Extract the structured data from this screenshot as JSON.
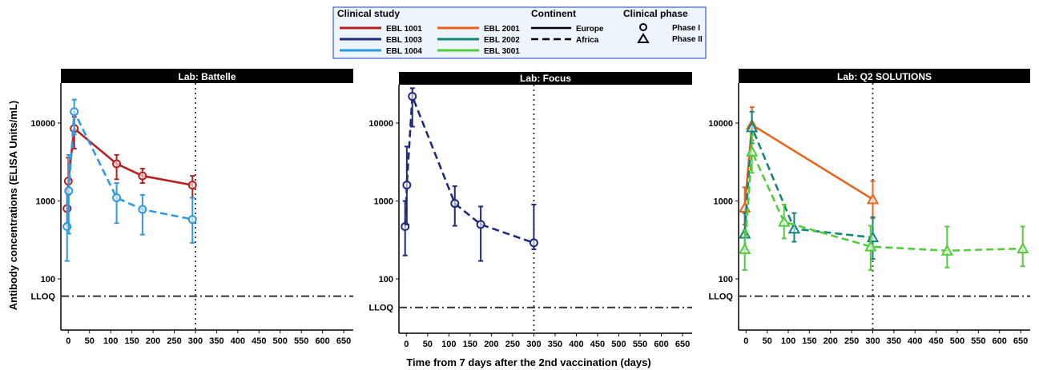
{
  "chart_data": {
    "type": "line",
    "y_axis_label": "Antibody concentrations (ELISA Units/mL)",
    "x_axis_label": "Time from 7 days after the 2nd vaccination (days)",
    "y_scale": "log10",
    "ylim": [
      40,
      30000
    ],
    "y_ticks": [
      100,
      1000,
      10000
    ],
    "y_tick_labels": [
      "100",
      "1000",
      "10000"
    ],
    "lloq_label": "LLOQ",
    "xlim": [
      -10,
      665
    ],
    "x_ticks": [
      0,
      50,
      100,
      150,
      200,
      250,
      300,
      350,
      400,
      450,
      500,
      550,
      600,
      650
    ],
    "x_tick_labels": [
      "0",
      "50",
      "100",
      "150",
      "200",
      "250",
      "300",
      "350",
      "400",
      "450",
      "500",
      "550",
      "600",
      "650"
    ],
    "reference_line_x": 300,
    "legend": {
      "position": "top-center",
      "study_title": "Clinical study",
      "continent_title": "Continent",
      "phase_title": "Clinical phase",
      "studies": [
        {
          "name": "EBL 1001",
          "color": "#B22222"
        },
        {
          "name": "EBL 1003",
          "color": "#1F2A7A"
        },
        {
          "name": "EBL 1004",
          "color": "#2E9BE0"
        },
        {
          "name": "EBL 2001",
          "color": "#E8641B"
        },
        {
          "name": "EBL 2002",
          "color": "#14857A"
        },
        {
          "name": "EBL 3001",
          "color": "#52CC3A"
        }
      ],
      "continents": [
        {
          "name": "Europe",
          "dash": "solid"
        },
        {
          "name": "Africa",
          "dash": "dashed"
        }
      ],
      "phases": [
        {
          "name": "Phase I",
          "shape": "circle"
        },
        {
          "name": "Phase II",
          "shape": "triangle"
        }
      ]
    },
    "panels": [
      {
        "title": "Lab: Battelle",
        "lloq": 60,
        "series": [
          {
            "study": "EBL 1001",
            "continent": "Europe",
            "phase": "Phase I",
            "color": "#B22222",
            "dash": "solid",
            "shape": "circle",
            "points": [
              {
                "x": -3,
                "y": 800,
                "lo": 500,
                "hi": 1400
              },
              {
                "x": 0,
                "y": 1800,
                "lo": 1200,
                "hi": 3600
              },
              {
                "x": 14,
                "y": 8500,
                "lo": 4700,
                "hi": 12000
              },
              {
                "x": 114,
                "y": 3000,
                "lo": 1900,
                "hi": 3900
              },
              {
                "x": 175,
                "y": 2100,
                "lo": 1700,
                "hi": 2600
              },
              {
                "x": 293,
                "y": 1600,
                "lo": 1100,
                "hi": 2100
              }
            ]
          },
          {
            "study": "EBL 1004",
            "continent": "Africa",
            "phase": "Phase I",
            "color": "#2E9BE0",
            "dash": "dashed",
            "shape": "circle",
            "points": [
              {
                "x": -3,
                "y": 470,
                "lo": 170,
                "hi": 1300
              },
              {
                "x": 1,
                "y": 1350,
                "lo": 380,
                "hi": 3900
              },
              {
                "x": 14,
                "y": 14000,
                "lo": 7200,
                "hi": 20000
              },
              {
                "x": 114,
                "y": 1100,
                "lo": 520,
                "hi": 1700
              },
              {
                "x": 175,
                "y": 780,
                "lo": 370,
                "hi": 1200
              },
              {
                "x": 293,
                "y": 580,
                "lo": 290,
                "hi": 1100
              }
            ]
          }
        ]
      },
      {
        "title": "Lab: Focus",
        "lloq": 43,
        "series": [
          {
            "study": "EBL 1003",
            "continent": "Africa",
            "phase": "Phase I",
            "color": "#1F2A7A",
            "dash": "dashed",
            "shape": "circle",
            "points": [
              {
                "x": -3,
                "y": 470,
                "lo": 200,
                "hi": 1000
              },
              {
                "x": 1,
                "y": 1600,
                "lo": 500,
                "hi": 5000
              },
              {
                "x": 14,
                "y": 22000,
                "lo": 9000,
                "hi": 28000
              },
              {
                "x": 114,
                "y": 930,
                "lo": 480,
                "hi": 1550
              },
              {
                "x": 175,
                "y": 500,
                "lo": 170,
                "hi": 850
              },
              {
                "x": 300,
                "y": 290,
                "lo": 240,
                "hi": 900
              }
            ]
          }
        ]
      },
      {
        "title": "Lab: Q2 SOLUTIONS",
        "lloq": 60,
        "series": [
          {
            "study": "EBL 2001",
            "continent": "Europe",
            "phase": "Phase II",
            "color": "#E8641B",
            "dash": "solid",
            "shape": "triangle",
            "points": [
              {
                "x": -3,
                "y": 820,
                "lo": 500,
                "hi": 1500
              },
              {
                "x": 14,
                "y": 9500,
                "lo": 6000,
                "hi": 16000
              },
              {
                "x": 300,
                "y": 1050,
                "lo": 600,
                "hi": 1800
              }
            ]
          },
          {
            "study": "EBL 2002",
            "continent": "Africa",
            "phase": "Phase II",
            "color": "#14857A",
            "dash": "dashed",
            "shape": "triangle",
            "points": [
              {
                "x": -3,
                "y": 380,
                "lo": 240,
                "hi": 700
              },
              {
                "x": 14,
                "y": 8800,
                "lo": 5500,
                "hi": 14000
              },
              {
                "x": 114,
                "y": 440,
                "lo": 300,
                "hi": 700
              },
              {
                "x": 300,
                "y": 340,
                "lo": 180,
                "hi": 620
              }
            ]
          },
          {
            "study": "EBL 3001",
            "continent": "Africa",
            "phase": "Phase II",
            "color": "#52CC3A",
            "dash": "dashed",
            "shape": "triangle",
            "points": [
              {
                "x": -3,
                "y": 240,
                "lo": 130,
                "hi": 420
              },
              {
                "x": 14,
                "y": 4300,
                "lo": 2300,
                "hi": 7000
              },
              {
                "x": 90,
                "y": 540,
                "lo": 330,
                "hi": 900
              },
              {
                "x": 295,
                "y": 260,
                "lo": 130,
                "hi": 480
              },
              {
                "x": 476,
                "y": 230,
                "lo": 140,
                "hi": 470
              },
              {
                "x": 655,
                "y": 245,
                "lo": 145,
                "hi": 470
              }
            ]
          }
        ]
      }
    ]
  }
}
